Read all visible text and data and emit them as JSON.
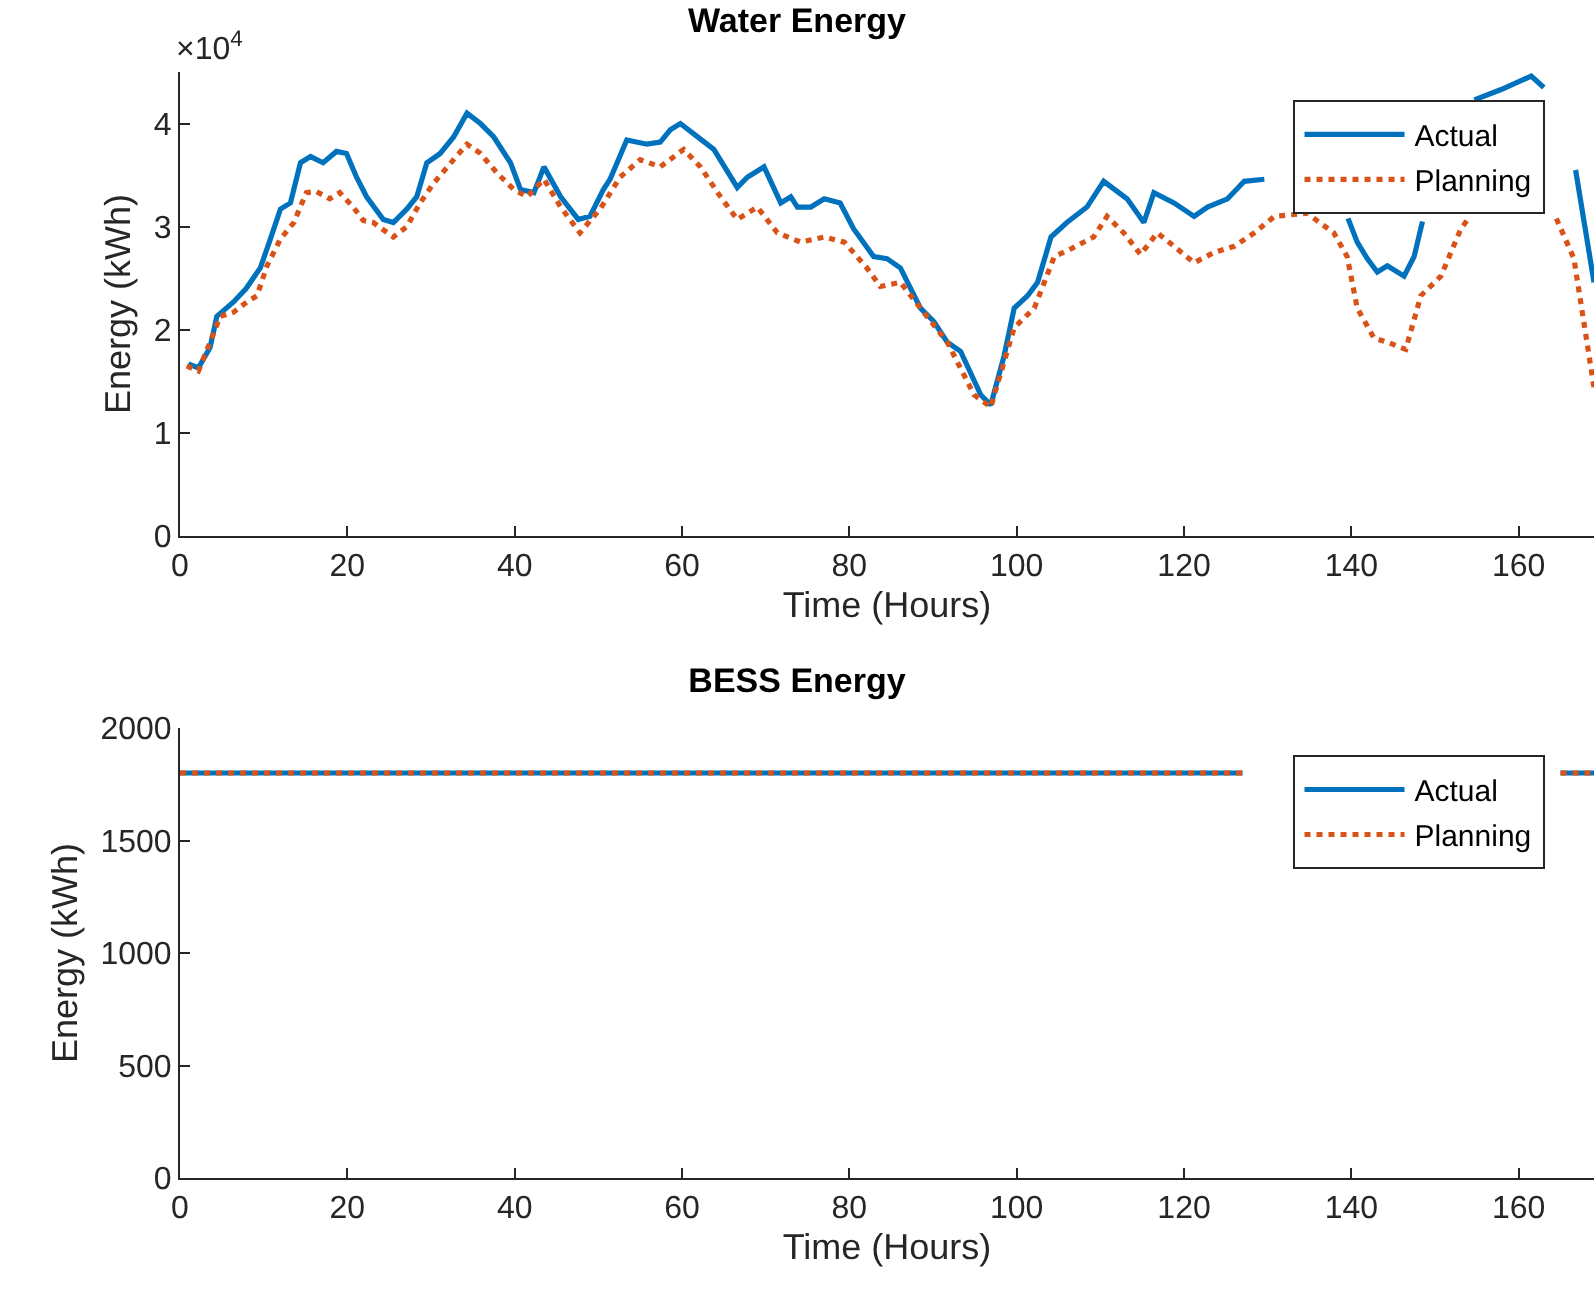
{
  "chart_data": [
    {
      "type": "line",
      "title": "Water Energy",
      "xlabel": "Time (Hours)",
      "ylabel": "Energy (kWh)",
      "annotations": [
        "×10$^{4}$"
      ],
      "xlim": [
        0,
        169
      ],
      "xticks": [
        0,
        20,
        40,
        60,
        80,
        100,
        120,
        140,
        160
      ],
      "ylim": [
        0,
        4.5
      ],
      "yticks": [
        0,
        1,
        2,
        3,
        4
      ],
      "grid": false,
      "legend": "top right",
      "marker": "none",
      "series": [
        {
          "name": "Actual",
          "color": "#0072bd",
          "line_style": "solid",
          "x": [
            1,
            2.2,
            3.6,
            4.4,
            6.4,
            7.9,
            9.6,
            10.8,
            12,
            13.2,
            14.4,
            15.6,
            17.1,
            18.7,
            19.9,
            21.1,
            22.3,
            24.3,
            25.5,
            27.1,
            28.3,
            29.5,
            31.1,
            32.7,
            34.3,
            35.9,
            37.5,
            39.5,
            40.7,
            42.3,
            43.5,
            45.5,
            47.6,
            49,
            50.6,
            51.4,
            53.4,
            55.8,
            57.4,
            58.6,
            59.8,
            61.4,
            63.8,
            66.6,
            67.8,
            69.8,
            71.8,
            73,
            73.8,
            75.4,
            77,
            78.9,
            80.5,
            82.9,
            84.5,
            86.1,
            88.5,
            90.1,
            91.7,
            93.3,
            95.7,
            96.9,
            98.5,
            99.7,
            101.3,
            102.5,
            104.1,
            106,
            108.4,
            110.4,
            113.2,
            115.2,
            116.4,
            118.8,
            121.2,
            122.8,
            125.2,
            127.2,
            129.6,
            130,
            139.6,
            140.7,
            141.9,
            143.1,
            144.3,
            146.3,
            147.5,
            148.5,
            150,
            154.7,
            157.9,
            161.5,
            163,
            164,
            166.8,
            169
          ],
          "values": [
            1.67,
            1.63,
            1.83,
            2.13,
            2.27,
            2.4,
            2.6,
            2.88,
            3.17,
            3.23,
            3.62,
            3.68,
            3.62,
            3.73,
            3.71,
            3.48,
            3.29,
            3.07,
            3.04,
            3.17,
            3.29,
            3.62,
            3.71,
            3.87,
            4.1,
            4.0,
            3.87,
            3.62,
            3.36,
            3.33,
            3.58,
            3.29,
            3.07,
            3.1,
            3.36,
            3.46,
            3.84,
            3.8,
            3.82,
            3.94,
            4.0,
            3.9,
            3.75,
            3.38,
            3.48,
            3.58,
            3.23,
            3.29,
            3.19,
            3.19,
            3.27,
            3.23,
            2.98,
            2.71,
            2.69,
            2.6,
            2.21,
            2.08,
            1.88,
            1.79,
            1.37,
            1.27,
            1.75,
            2.21,
            2.33,
            2.46,
            2.9,
            3.04,
            3.19,
            3.44,
            3.27,
            3.04,
            3.33,
            3.23,
            3.1,
            3.19,
            3.27,
            3.44,
            3.46,
            null,
            3.08,
            2.85,
            2.69,
            2.56,
            2.62,
            2.52,
            2.71,
            3.05,
            null,
            4.23,
            4.33,
            4.46,
            4.35,
            null,
            3.55,
            2.46
          ]
        },
        {
          "name": "Planning",
          "color": "#d95319",
          "line_style": "dotted",
          "x": [
            0.8,
            2.2,
            3.6,
            4.8,
            6.4,
            8,
            9.2,
            10.4,
            12,
            13.6,
            15.1,
            16.3,
            17.9,
            19.1,
            20.7,
            21.9,
            23.1,
            25.5,
            27.1,
            28.7,
            30.3,
            32.7,
            34.3,
            35.9,
            37.9,
            39.9,
            41.5,
            43.5,
            45.5,
            47.8,
            50.2,
            52.6,
            55,
            57.4,
            60.2,
            62.2,
            64.6,
            66.6,
            69,
            71.4,
            74.2,
            77,
            79.4,
            82.1,
            83.7,
            86.1,
            88.5,
            91.7,
            94.9,
            96.9,
            99.7,
            102.1,
            104.5,
            106.6,
            109.2,
            110.8,
            112.8,
            114.8,
            116.8,
            118.8,
            121.2,
            123.6,
            126,
            128.4,
            130.8,
            134.7,
            137.9,
            139.5,
            140.7,
            142.7,
            144.3,
            146.5,
            148.3,
            150.7,
            153.1,
            154,
            155,
            164.5,
            166.6,
            169
          ],
          "values": [
            1.65,
            1.6,
            1.88,
            2.13,
            2.17,
            2.27,
            2.33,
            2.62,
            2.88,
            3.04,
            3.33,
            3.34,
            3.27,
            3.33,
            3.19,
            3.06,
            3.04,
            2.9,
            3.0,
            3.23,
            3.42,
            3.65,
            3.8,
            3.71,
            3.52,
            3.36,
            3.29,
            3.46,
            3.19,
            2.94,
            3.17,
            3.48,
            3.65,
            3.58,
            3.75,
            3.58,
            3.29,
            3.07,
            3.19,
            2.94,
            2.85,
            2.9,
            2.85,
            2.6,
            2.42,
            2.46,
            2.21,
            1.88,
            1.37,
            1.25,
            2.02,
            2.21,
            2.71,
            2.79,
            2.9,
            3.1,
            2.94,
            2.73,
            2.94,
            2.81,
            2.65,
            2.75,
            2.81,
            2.94,
            3.1,
            3.13,
            2.94,
            2.71,
            2.21,
            1.92,
            1.88,
            1.81,
            2.33,
            2.52,
            2.98,
            3.08,
            null,
            3.08,
            2.69,
            1.44
          ]
        }
      ]
    },
    {
      "type": "line",
      "title": "BESS Energy",
      "xlabel": "Time (Hours)",
      "ylabel": "Energy (kWh)",
      "xlim": [
        0,
        169
      ],
      "xticks": [
        0,
        20,
        40,
        60,
        80,
        100,
        120,
        140,
        160
      ],
      "ylim": [
        0,
        2000
      ],
      "yticks": [
        0,
        500,
        1000,
        1500,
        2000
      ],
      "grid": false,
      "legend": "top right",
      "marker": "none",
      "series": [
        {
          "name": "Actual",
          "color": "#0072bd",
          "line_style": "solid",
          "x": [
            0,
            127,
            128,
            165,
            169
          ],
          "values": [
            1800,
            1800,
            null,
            1800,
            1800
          ]
        },
        {
          "name": "Planning",
          "color": "#d95319",
          "line_style": "dotted",
          "x": [
            0,
            127,
            128,
            165,
            169
          ],
          "values": [
            1800,
            1800,
            null,
            1800,
            1800
          ]
        }
      ]
    }
  ]
}
